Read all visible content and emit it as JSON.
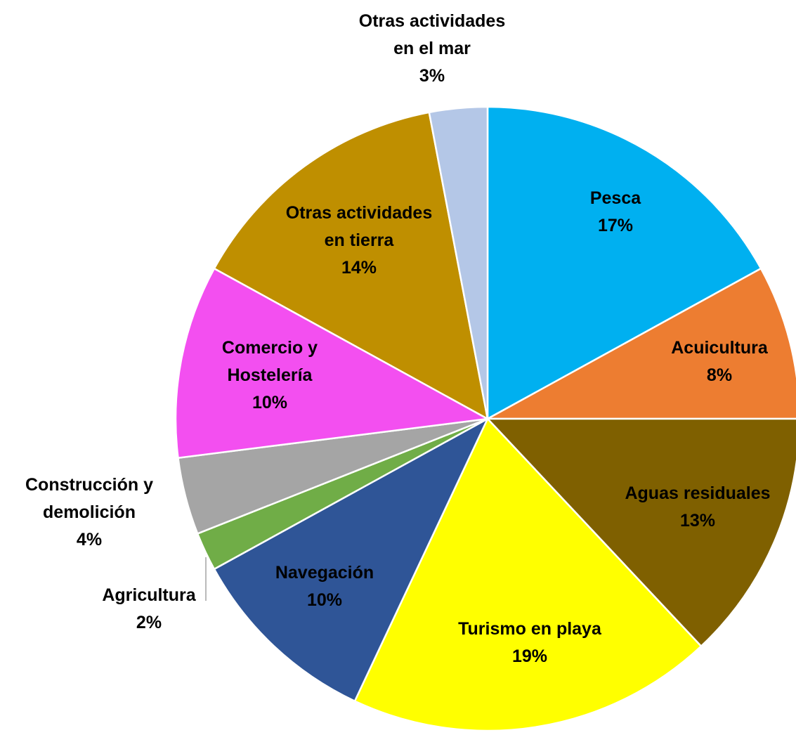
{
  "chart_data": {
    "type": "pie",
    "title": "",
    "unit": "%",
    "start_angle_deg": 0,
    "direction": "clockwise",
    "slices": [
      {
        "label": "Pesca",
        "label_lines": [
          "Pesca"
        ],
        "value": 17,
        "value_label": "17%",
        "color": "#00B0F0",
        "label_color": "#000000"
      },
      {
        "label": "Acuicultura",
        "label_lines": [
          "Acuicultura"
        ],
        "value": 8,
        "value_label": "8%",
        "color": "#ED7D31",
        "label_color": "#000000"
      },
      {
        "label": "Aguas residuales",
        "label_lines": [
          "Aguas residuales"
        ],
        "value": 13,
        "value_label": "13%",
        "color": "#7F6000",
        "label_color": "#000000"
      },
      {
        "label": "Turismo en playa",
        "label_lines": [
          "Turismo en playa"
        ],
        "value": 19,
        "value_label": "19%",
        "color": "#FFFF00",
        "label_color": "#000000"
      },
      {
        "label": "Navegación",
        "label_lines": [
          "Navegación"
        ],
        "value": 10,
        "value_label": "10%",
        "color": "#2F5597",
        "label_color": "#000000"
      },
      {
        "label": "Agricultura",
        "label_lines": [
          "Agricultura"
        ],
        "value": 2,
        "value_label": "2%",
        "color": "#70AD47",
        "label_color": "#000000"
      },
      {
        "label": "Construcción y demolición",
        "label_lines": [
          "Construcción y",
          "demolición"
        ],
        "value": 4,
        "value_label": "4%",
        "color": "#A5A5A5",
        "label_color": "#000000"
      },
      {
        "label": "Comercio y Hostelería",
        "label_lines": [
          "Comercio y",
          "Hostelería"
        ],
        "value": 10,
        "value_label": "10%",
        "color": "#F34FF0",
        "label_color": "#000000"
      },
      {
        "label": "Otras actividades en tierra",
        "label_lines": [
          "Otras actividades",
          "en tierra"
        ],
        "value": 14,
        "value_label": "14%",
        "color": "#BF8F00",
        "label_color": "#000000"
      },
      {
        "label": "Otras actividades en el mar",
        "label_lines": [
          "Otras actividades",
          "en el mar"
        ],
        "value": 3,
        "value_label": "3%",
        "color": "#B4C7E7",
        "label_color": "#000000"
      }
    ]
  }
}
